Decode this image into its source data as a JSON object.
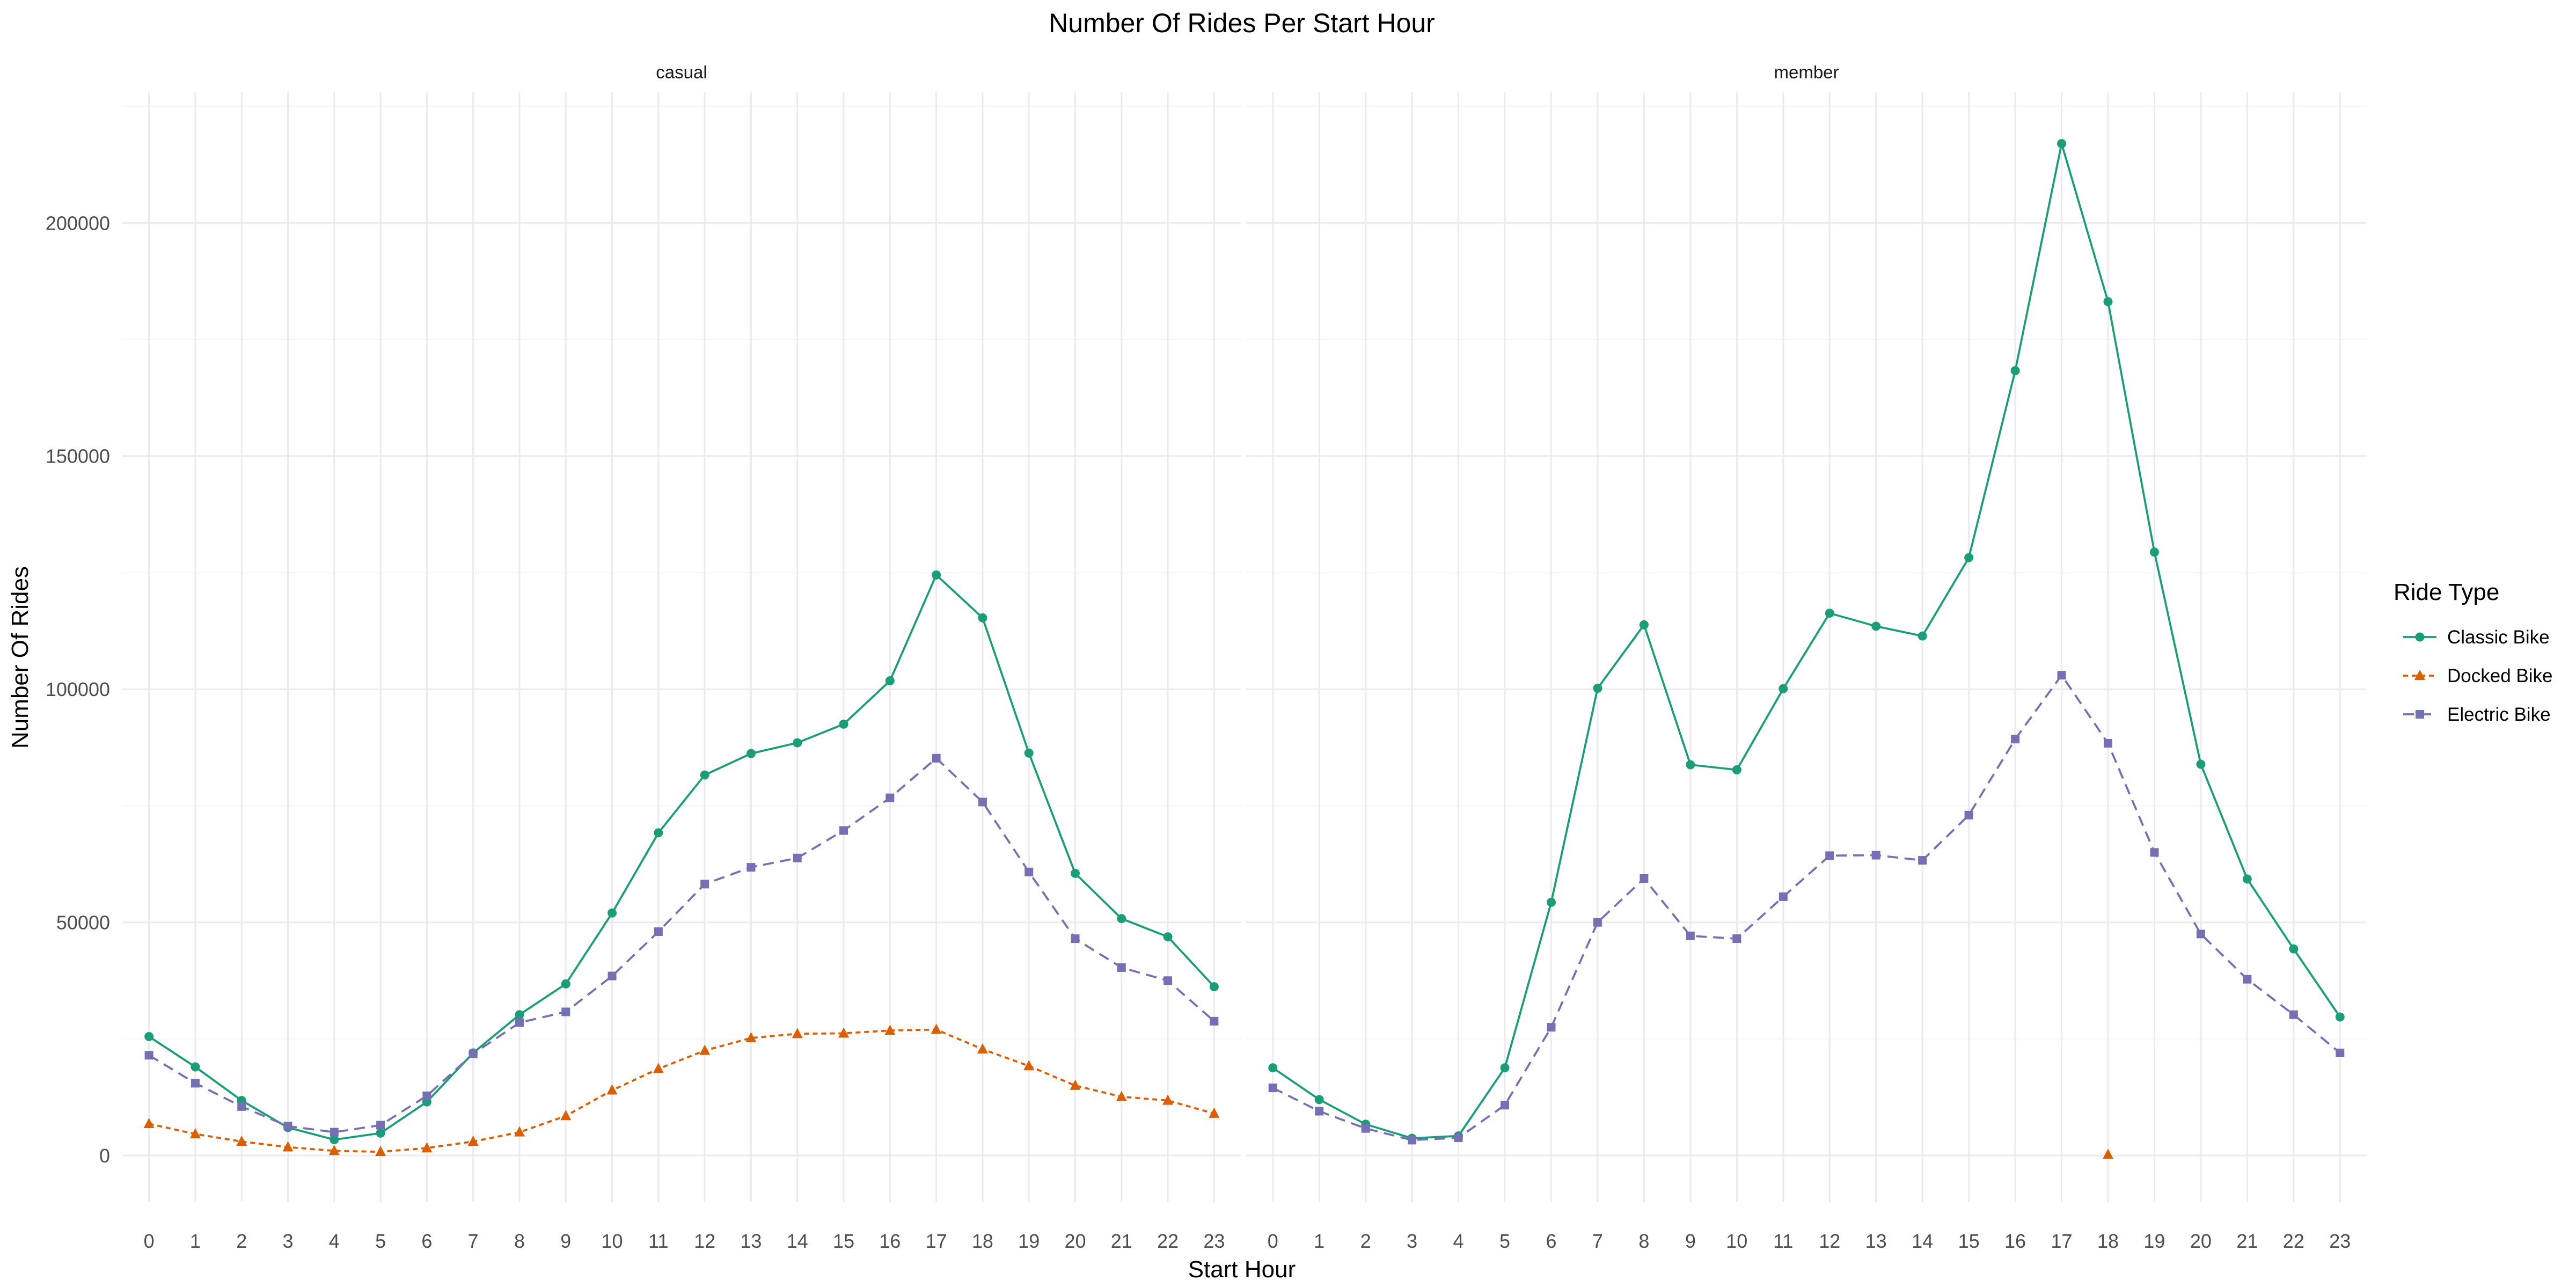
{
  "chart_data": {
    "type": "line",
    "title": "Number Of Rides Per Start Hour",
    "xlabel": "Start Hour",
    "ylabel": "Number Of Rides",
    "x": [
      0,
      1,
      2,
      3,
      4,
      5,
      6,
      7,
      8,
      9,
      10,
      11,
      12,
      13,
      14,
      15,
      16,
      17,
      18,
      19,
      20,
      21,
      22,
      23
    ],
    "x_ticks": [
      "0",
      "1",
      "2",
      "3",
      "4",
      "5",
      "6",
      "7",
      "8",
      "9",
      "10",
      "11",
      "12",
      "13",
      "14",
      "15",
      "16",
      "17",
      "18",
      "19",
      "20",
      "21",
      "22",
      "23"
    ],
    "y_ticks": [
      0,
      50000,
      100000,
      150000,
      200000
    ],
    "y_tick_labels": [
      "0",
      "50000",
      "100000",
      "150000",
      "200000"
    ],
    "ylim": [
      -10000,
      228000
    ],
    "grid": true,
    "legend": {
      "title": "Ride Type",
      "position": "right",
      "entries": [
        "Classic Bike",
        "Docked Bike",
        "Electric Bike"
      ]
    },
    "colors": {
      "Classic Bike": "#1b9e77",
      "Docked Bike": "#d95f02",
      "Electric Bike": "#7570b3"
    },
    "facets": [
      {
        "label": "casual",
        "series": [
          {
            "name": "Classic Bike",
            "values": [
              25500,
              19000,
              11800,
              6000,
              3400,
              4800,
              11500,
              22000,
              30200,
              36800,
              52000,
              69200,
              81600,
              86200,
              88500,
              92500,
              101800,
              124500,
              115300,
              86300,
              60500,
              50800,
              46900,
              36200
            ]
          },
          {
            "name": "Docked Bike",
            "values": [
              6800,
              4600,
              3000,
              1800,
              1000,
              800,
              1600,
              3000,
              5000,
              8500,
              14000,
              18600,
              22500,
              25200,
              26100,
              26200,
              26800,
              27000,
              22800,
              19200,
              15000,
              12600,
              11800,
              9000
            ]
          },
          {
            "name": "Electric Bike",
            "values": [
              21500,
              15500,
              10500,
              6300,
              5000,
              6500,
              12800,
              21800,
              28500,
              30800,
              38500,
              48000,
              58200,
              61800,
              63800,
              69700,
              76700,
              85200,
              75800,
              60800,
              46500,
              40300,
              37500,
              28800
            ]
          }
        ]
      },
      {
        "label": "member",
        "series": [
          {
            "name": "Classic Bike",
            "values": [
              18800,
              12000,
              6700,
              3700,
              4200,
              18800,
              54300,
              100200,
              113800,
              83800,
              82700,
              100100,
              116300,
              113500,
              111400,
              128200,
              168300,
              217000,
              183100,
              129400,
              83900,
              59300,
              44300,
              29700
            ]
          },
          {
            "name": "Docked Bike",
            "values": [
              null,
              null,
              null,
              null,
              null,
              null,
              null,
              null,
              null,
              null,
              null,
              null,
              null,
              null,
              null,
              null,
              null,
              null,
              200,
              null,
              null,
              null,
              null,
              null
            ]
          },
          {
            "name": "Electric Bike",
            "values": [
              14500,
              9500,
              5800,
              3300,
              3800,
              10800,
              27500,
              50000,
              59400,
              47100,
              46500,
              55500,
              64300,
              64400,
              63300,
              73000,
              89300,
              103000,
              88400,
              65000,
              47500,
              37800,
              30200,
              22000
            ]
          }
        ]
      }
    ]
  }
}
